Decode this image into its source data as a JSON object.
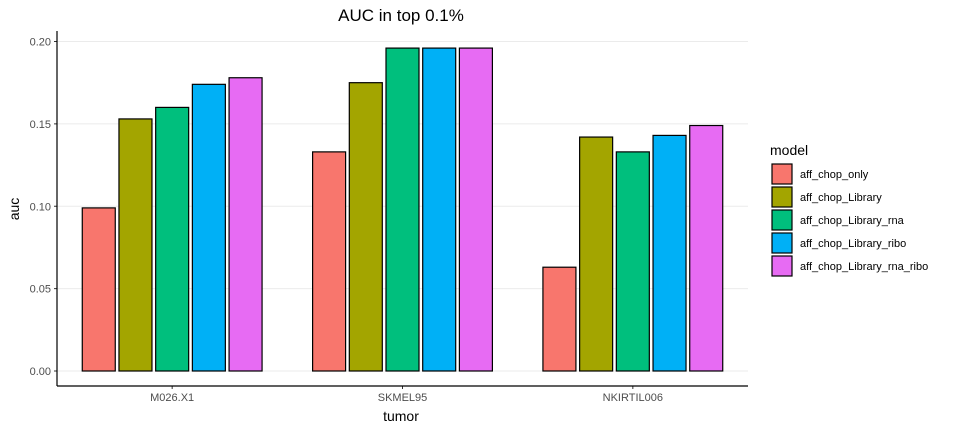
{
  "chart_data": {
    "type": "bar",
    "title": "AUC in top 0.1%",
    "xlabel": "tumor",
    "ylabel": "auc",
    "categories": [
      "M026.X1",
      "SKMEL95",
      "NKIRTIL006"
    ],
    "ylim": [
      0,
      0.2
    ],
    "yticks": [
      "0.00",
      "0.05",
      "0.10",
      "0.15",
      "0.20"
    ],
    "grid": "horizontal major",
    "legend_title": "model",
    "legend_position": "right",
    "series": [
      {
        "name": "aff_chop_only",
        "color": "#F8766D",
        "values": [
          0.099,
          0.133,
          0.063
        ]
      },
      {
        "name": "aff_chop_Library",
        "color": "#A3A500",
        "values": [
          0.153,
          0.175,
          0.142
        ]
      },
      {
        "name": "aff_chop_Library_rna",
        "color": "#00BF7D",
        "values": [
          0.16,
          0.196,
          0.133
        ]
      },
      {
        "name": "aff_chop_Library_ribo",
        "color": "#00B0F6",
        "values": [
          0.174,
          0.196,
          0.143
        ]
      },
      {
        "name": "aff_chop_Library_rna_ribo",
        "color": "#E76BF3",
        "values": [
          0.178,
          0.196,
          0.149
        ]
      }
    ]
  }
}
